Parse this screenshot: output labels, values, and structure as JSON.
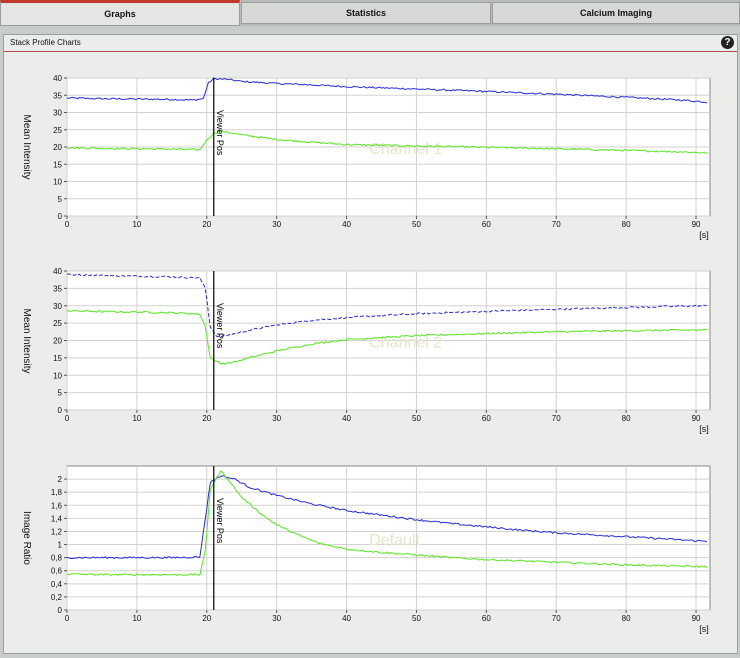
{
  "tabs": [
    {
      "label": "Graphs",
      "active": true
    },
    {
      "label": "Statistics",
      "active": false
    },
    {
      "label": "Calcium Imaging",
      "active": false
    }
  ],
  "panel": {
    "title": "Stack Profile Charts",
    "help_icon": "question-mark-icon"
  },
  "colors": {
    "blue": "#2a2adc",
    "green": "#55e81c",
    "marker": "#000000",
    "grid": "#d2d2d2",
    "watermark": "#e6e6c8"
  },
  "chart_data": [
    {
      "type": "line",
      "ylabel": "Mean Intensity",
      "xunit": "[s]",
      "watermark": "Channel 1",
      "marker_label": "Viewer Pos",
      "marker_x": 21,
      "xlim": [
        0,
        92
      ],
      "ylim": [
        0,
        40
      ],
      "xticks": [
        0,
        10,
        20,
        30,
        40,
        50,
        60,
        70,
        80,
        90
      ],
      "yticks": [
        0,
        5,
        10,
        15,
        20,
        25,
        30,
        35,
        40
      ],
      "grid": true,
      "series": [
        {
          "color": "blue",
          "dashed": false,
          "points": [
            [
              0,
              34.2
            ],
            [
              5,
              34.0
            ],
            [
              10,
              33.9
            ],
            [
              15,
              33.8
            ],
            [
              18,
              33.6
            ],
            [
              19.5,
              34.0
            ],
            [
              20.2,
              38.5
            ],
            [
              21,
              39.8
            ],
            [
              23,
              39.6
            ],
            [
              25,
              39.0
            ],
            [
              30,
              38.4
            ],
            [
              35,
              38.0
            ],
            [
              40,
              37.5
            ],
            [
              50,
              36.8
            ],
            [
              60,
              36.1
            ],
            [
              70,
              35.3
            ],
            [
              80,
              34.4
            ],
            [
              88,
              33.6
            ],
            [
              91.5,
              33.0
            ]
          ]
        },
        {
          "color": "green",
          "dashed": false,
          "points": [
            [
              0,
              19.8
            ],
            [
              5,
              19.6
            ],
            [
              10,
              19.5
            ],
            [
              15,
              19.4
            ],
            [
              19,
              19.2
            ],
            [
              20,
              22.0
            ],
            [
              21,
              24.0
            ],
            [
              22,
              24.6
            ],
            [
              25,
              23.5
            ],
            [
              30,
              22.2
            ],
            [
              35,
              21.4
            ],
            [
              40,
              20.7
            ],
            [
              50,
              20.3
            ],
            [
              60,
              19.9
            ],
            [
              70,
              19.5
            ],
            [
              80,
              19.0
            ],
            [
              88,
              18.6
            ],
            [
              91.5,
              18.3
            ]
          ]
        }
      ]
    },
    {
      "type": "line",
      "ylabel": "Mean Intensity",
      "xunit": "[s]",
      "watermark": "Channel 2",
      "marker_label": "Viewer Pos",
      "marker_x": 21,
      "xlim": [
        0,
        92
      ],
      "ylim": [
        0,
        40
      ],
      "xticks": [
        0,
        10,
        20,
        30,
        40,
        50,
        60,
        70,
        80,
        90
      ],
      "yticks": [
        0,
        5,
        10,
        15,
        20,
        25,
        30,
        35,
        40
      ],
      "grid": true,
      "series": [
        {
          "color": "blue",
          "dashed": true,
          "points": [
            [
              0,
              39.0
            ],
            [
              5,
              38.7
            ],
            [
              10,
              38.5
            ],
            [
              15,
              38.3
            ],
            [
              19,
              38.0
            ],
            [
              19.8,
              35.0
            ],
            [
              20.5,
              24.0
            ],
            [
              21.5,
              21.0
            ],
            [
              23,
              21.5
            ],
            [
              25,
              22.5
            ],
            [
              30,
              24.5
            ],
            [
              35,
              25.8
            ],
            [
              40,
              26.6
            ],
            [
              50,
              27.7
            ],
            [
              60,
              28.4
            ],
            [
              70,
              29.0
            ],
            [
              80,
              29.5
            ],
            [
              88,
              29.9
            ],
            [
              91.5,
              30.0
            ]
          ]
        },
        {
          "color": "green",
          "dashed": false,
          "points": [
            [
              0,
              28.6
            ],
            [
              5,
              28.3
            ],
            [
              10,
              28.2
            ],
            [
              15,
              28.0
            ],
            [
              19,
              27.6
            ],
            [
              19.8,
              24.0
            ],
            [
              20.5,
              15.0
            ],
            [
              22,
              13.3
            ],
            [
              24,
              13.8
            ],
            [
              26,
              15.0
            ],
            [
              30,
              17.0
            ],
            [
              35,
              19.0
            ],
            [
              40,
              20.3
            ],
            [
              50,
              21.4
            ],
            [
              60,
              22.0
            ],
            [
              70,
              22.5
            ],
            [
              80,
              22.8
            ],
            [
              88,
              23.0
            ],
            [
              91.5,
              23.0
            ]
          ]
        }
      ]
    },
    {
      "type": "line",
      "ylabel": "Image Ratio",
      "xunit": "[s]",
      "watermark": "Default",
      "marker_label": "Viewer Pos",
      "marker_x": 21,
      "xlim": [
        0,
        92
      ],
      "ylim": [
        0,
        2.2
      ],
      "xticks": [
        0,
        10,
        20,
        30,
        40,
        50,
        60,
        70,
        80,
        90
      ],
      "yticks": [
        0,
        0.2,
        0.4,
        0.6,
        0.8,
        1,
        1.2,
        1.4,
        1.6,
        1.8,
        2
      ],
      "ytick_labels": [
        "0",
        "0,2",
        "0,4",
        "0,6",
        "0,8",
        "1",
        "1,2",
        "1,4",
        "1,6",
        "1,8",
        "2"
      ],
      "grid": true,
      "series": [
        {
          "color": "blue",
          "dashed": false,
          "points": [
            [
              0,
              0.8
            ],
            [
              5,
              0.8
            ],
            [
              10,
              0.8
            ],
            [
              15,
              0.8
            ],
            [
              19,
              0.81
            ],
            [
              19.8,
              1.4
            ],
            [
              20.5,
              1.95
            ],
            [
              22,
              2.05
            ],
            [
              24,
              2.0
            ],
            [
              26,
              1.88
            ],
            [
              30,
              1.75
            ],
            [
              35,
              1.62
            ],
            [
              40,
              1.52
            ],
            [
              45,
              1.45
            ],
            [
              50,
              1.38
            ],
            [
              55,
              1.32
            ],
            [
              60,
              1.27
            ],
            [
              65,
              1.22
            ],
            [
              70,
              1.18
            ],
            [
              75,
              1.15
            ],
            [
              80,
              1.12
            ],
            [
              85,
              1.09
            ],
            [
              88,
              1.07
            ],
            [
              91.5,
              1.05
            ]
          ]
        },
        {
          "color": "green",
          "dashed": false,
          "points": [
            [
              0,
              0.55
            ],
            [
              5,
              0.54
            ],
            [
              10,
              0.54
            ],
            [
              15,
              0.54
            ],
            [
              19,
              0.54
            ],
            [
              19.8,
              0.9
            ],
            [
              20.5,
              1.85
            ],
            [
              22,
              2.12
            ],
            [
              23,
              2.0
            ],
            [
              25,
              1.72
            ],
            [
              28,
              1.45
            ],
            [
              30,
              1.3
            ],
            [
              33,
              1.15
            ],
            [
              36,
              1.02
            ],
            [
              40,
              0.93
            ],
            [
              45,
              0.88
            ],
            [
              50,
              0.84
            ],
            [
              55,
              0.8
            ],
            [
              60,
              0.77
            ],
            [
              70,
              0.73
            ],
            [
              80,
              0.69
            ],
            [
              88,
              0.67
            ],
            [
              91.5,
              0.66
            ]
          ]
        }
      ]
    }
  ]
}
